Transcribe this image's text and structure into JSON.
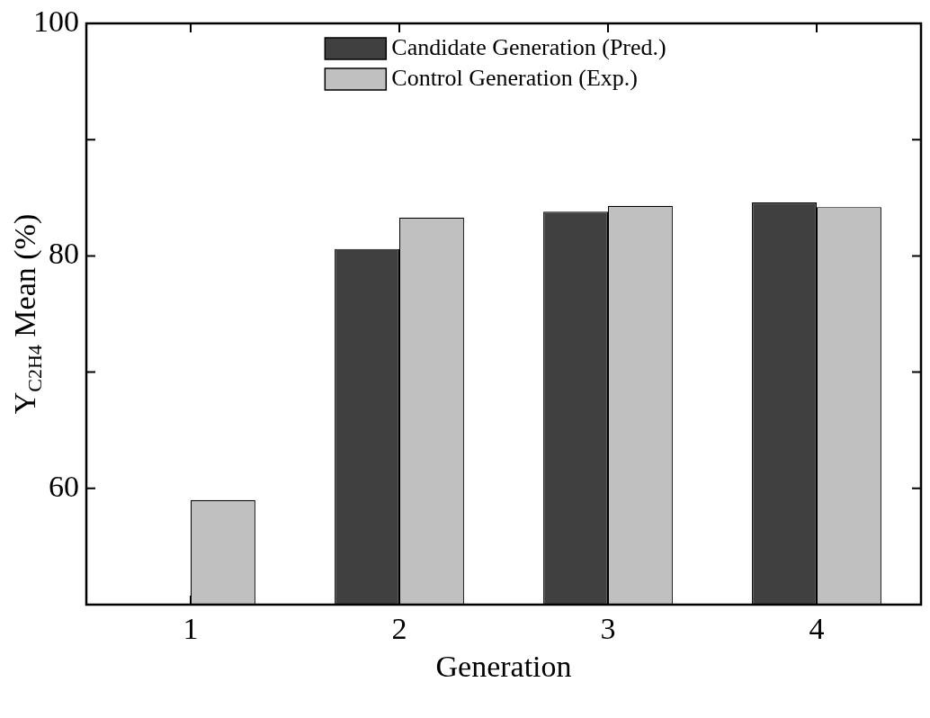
{
  "chart_data": {
    "type": "bar",
    "xlabel": "Generation",
    "ylabel": "Y$_{C2H4}$ Mean (%)",
    "categories": [
      "1",
      "2",
      "3",
      "4"
    ],
    "series": [
      {
        "name": "Candidate Generation (Pred.)",
        "color": "#404040",
        "values": [
          null,
          80.6,
          83.8,
          84.6
        ]
      },
      {
        "name": "Control Generation (Exp.)",
        "color": "#c0c0c0",
        "values": [
          59.0,
          83.3,
          84.3,
          84.2
        ]
      }
    ],
    "ylim": [
      50,
      100
    ],
    "yticks": [
      60,
      {
        "value": 70,
        "label": null
      },
      80,
      {
        "value": 90,
        "label": null
      },
      100
    ],
    "legend": "top",
    "grid": false
  }
}
